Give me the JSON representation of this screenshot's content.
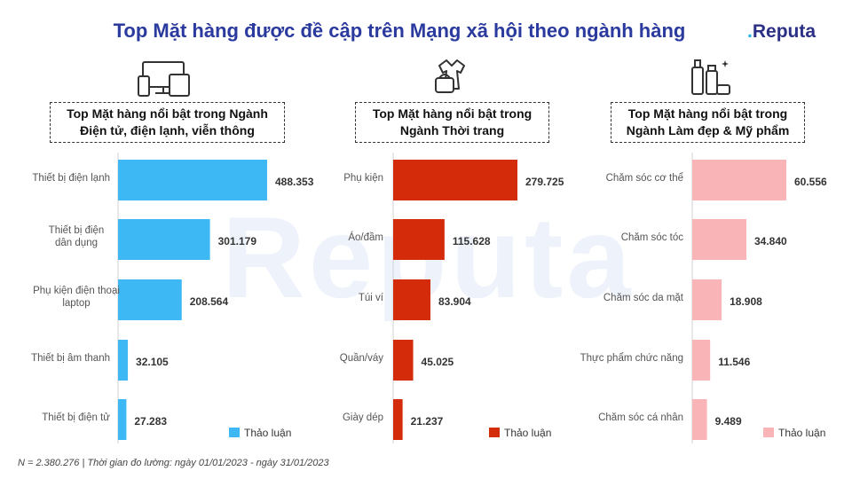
{
  "title": "Top Mặt hàng được đề cập trên Mạng xã hội theo ngành hàng",
  "logo": {
    "prefix": ".",
    "name": "Reputa"
  },
  "watermark": "Reputa",
  "footnote": "N = 2.380.276 | Thời gian đo lường: ngày 01/01/2023 - ngày 31/01/2023",
  "colors": {
    "electronics": "#3db8f5",
    "fashion": "#d42b0a",
    "beauty": "#f9b4b8",
    "title": "#2b3a9e"
  },
  "chart_data": [
    {
      "type": "bar",
      "orientation": "horizontal",
      "title": "Top Mặt hàng nổi bật trong Ngành Điện tử, điện lạnh, viễn thông",
      "categories": [
        "Thiết bị điện lạnh",
        "Thiết bị điện dân dụng",
        "Phụ kiện điện thoại laptop",
        "Thiết bị âm thanh",
        "Thiết bị điện tử"
      ],
      "values": [
        488353,
        301179,
        208564,
        32105,
        27283
      ],
      "value_labels": [
        "488.353",
        "301.179",
        "208.564",
        "32.105",
        "27.283"
      ],
      "legend": "Thảo luận",
      "icon": "electronics-devices-icon"
    },
    {
      "type": "bar",
      "orientation": "horizontal",
      "title": "Top Mặt hàng nổi bật trong Ngành Thời trang",
      "categories": [
        "Phụ kiện",
        "Áo/đầm",
        "Túi ví",
        "Quần/váy",
        "Giày dép"
      ],
      "values": [
        279725,
        115628,
        83904,
        45025,
        21237
      ],
      "value_labels": [
        "279.725",
        "115.628",
        "83.904",
        "45.025",
        "21.237"
      ],
      "legend": "Thảo luận",
      "icon": "fashion-dress-bag-icon"
    },
    {
      "type": "bar",
      "orientation": "horizontal",
      "title": "Top Mặt hàng nổi bật trong Ngành Làm đẹp & Mỹ phẩm",
      "categories": [
        "Chăm sóc cơ thể",
        "Chăm sóc tóc",
        "Chăm sóc da mặt",
        "Thực phẩm chức năng",
        "Chăm sóc cá nhân"
      ],
      "values": [
        60556,
        34840,
        18908,
        11546,
        9489
      ],
      "value_labels": [
        "60.556",
        "34.840",
        "18.908",
        "11.546",
        "9.489"
      ],
      "legend": "Thảo luận",
      "icon": "cosmetics-bottles-icon"
    }
  ],
  "headers": [
    {
      "line1": "Top Mặt hàng nổi bật trong Ngành",
      "line2": "Điện tử, điện lạnh, viễn thông"
    },
    {
      "line1": "Top Mặt hàng nổi bật trong",
      "line2": "Ngành Thời trang"
    },
    {
      "line1": "Top Mặt hàng nổi bật trong",
      "line2": "Ngành Làm đẹp & Mỹ phẩm"
    }
  ]
}
